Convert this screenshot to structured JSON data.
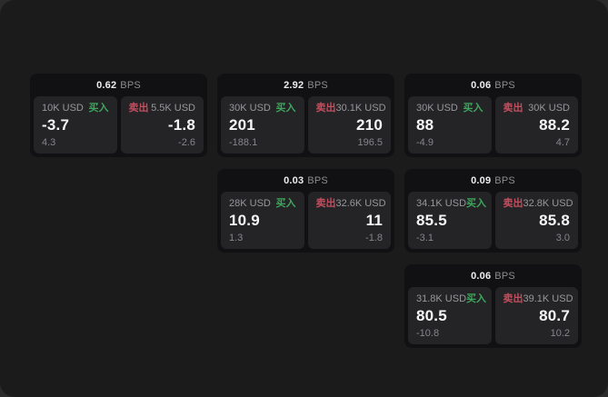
{
  "labels": {
    "bps_suffix": "BPS",
    "buy": "买入",
    "sell": "卖出"
  },
  "colors": {
    "window_bg": "#1b1b1c",
    "card_bg": "#111113",
    "tile_bg": "#242427",
    "buy_green": "#3ea65c",
    "sell_red": "#c44d5e",
    "value_white": "#f6f6f7",
    "muted_gray": "#8d8d90"
  },
  "cards": [
    {
      "bps": "0.62",
      "buy": {
        "size": "10K USD",
        "value": "-3.7",
        "sub": "4.3"
      },
      "sell": {
        "size": "5.5K USD",
        "value": "-1.8",
        "sub": "-2.6"
      }
    },
    {
      "bps": "2.92",
      "buy": {
        "size": "30K USD",
        "value": "201",
        "sub": "-188.1"
      },
      "sell": {
        "size": "30.1K USD",
        "value": "210",
        "sub": "196.5"
      }
    },
    {
      "bps": "0.06",
      "buy": {
        "size": "30K USD",
        "value": "88",
        "sub": "-4.9"
      },
      "sell": {
        "size": "30K USD",
        "value": "88.2",
        "sub": "4.7"
      }
    },
    {
      "bps": "0.03",
      "buy": {
        "size": "28K USD",
        "value": "10.9",
        "sub": "1.3"
      },
      "sell": {
        "size": "32.6K USD",
        "value": "11",
        "sub": "-1.8"
      }
    },
    {
      "bps": "0.09",
      "buy": {
        "size": "34.1K USD",
        "value": "85.5",
        "sub": "-3.1"
      },
      "sell": {
        "size": "32.8K USD",
        "value": "85.8",
        "sub": "3.0"
      }
    },
    {
      "bps": "0.06",
      "buy": {
        "size": "31.8K USD",
        "value": "80.5",
        "sub": "-10.8"
      },
      "sell": {
        "size": "39.1K USD",
        "value": "80.7",
        "sub": "10.2"
      }
    }
  ]
}
